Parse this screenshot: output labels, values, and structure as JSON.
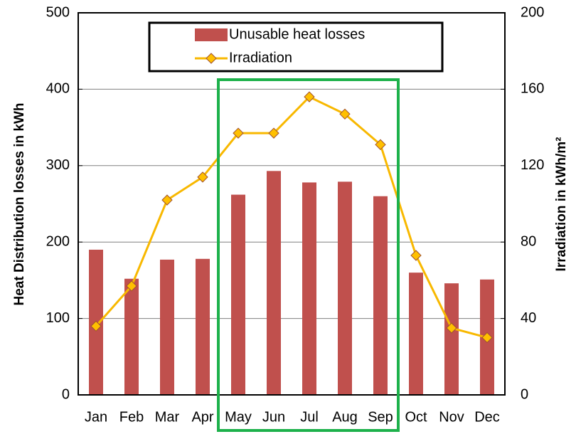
{
  "chart_data": {
    "type": "bar_line",
    "categories": [
      "Jan",
      "Feb",
      "Mar",
      "Apr",
      "May",
      "Jun",
      "Jul",
      "Aug",
      "Sep",
      "Oct",
      "Nov",
      "Dec"
    ],
    "series": [
      {
        "name": "Unusable heat losses",
        "type": "bar",
        "color": "#c0504d",
        "values": [
          190,
          152,
          177,
          178,
          262,
          293,
          278,
          279,
          260,
          160,
          146,
          151
        ]
      },
      {
        "name": "Irradiation",
        "type": "line",
        "axis": "y2",
        "color": "#f8b800",
        "marker_color": "#ffc000",
        "values": [
          36,
          57,
          102,
          114,
          137,
          137,
          156,
          147,
          131,
          73,
          35,
          30
        ]
      }
    ],
    "ylabel": "Heat Distribution losses in kWh",
    "y2label": "Irradiation in kWh/m²",
    "ylim": [
      0,
      500
    ],
    "yticks": [
      0,
      100,
      200,
      300,
      400,
      500
    ],
    "y2lim": [
      0,
      200
    ],
    "y2ticks": [
      0,
      40,
      80,
      120,
      160,
      200
    ],
    "grid": true,
    "legend": "top"
  }
}
